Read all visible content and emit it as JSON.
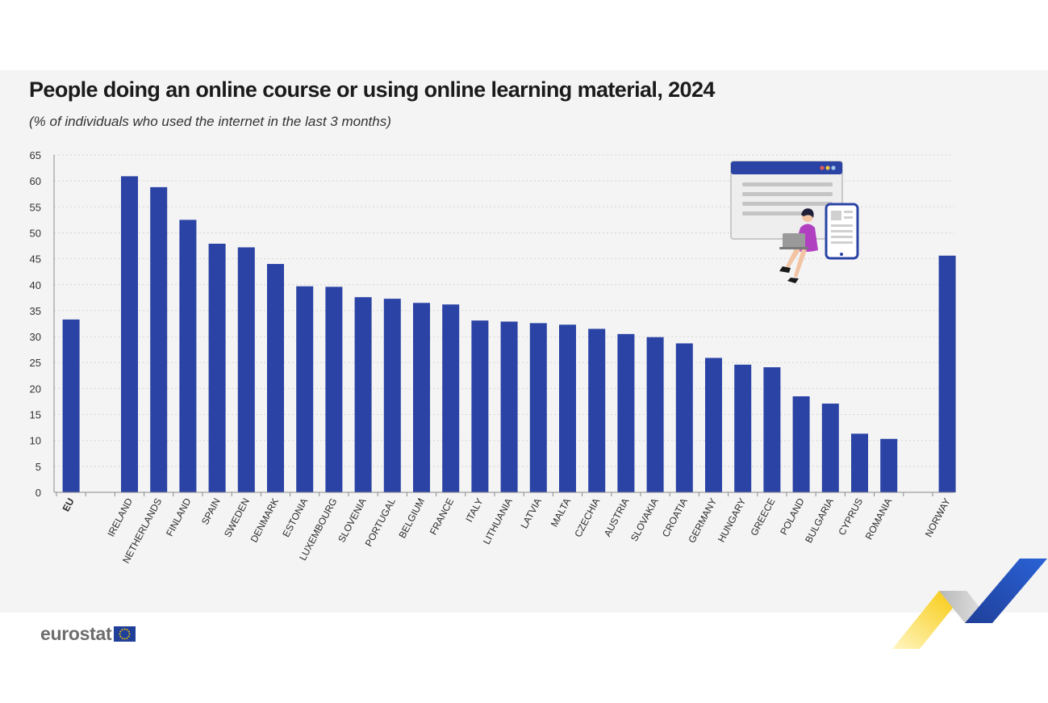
{
  "title": "People doing an online course or using online learning material, 2024",
  "subtitle": "(% of individuals who used the internet in the last 3 months)",
  "logo_text": "eurostat",
  "colors": {
    "bar": "#2a43a5",
    "panel": "#f4f4f4",
    "grid": "#d6d6d6",
    "accent_yellow": "#f7c600"
  },
  "chart_data": {
    "type": "bar",
    "title": "People doing an online course or using online learning material, 2024",
    "subtitle": "(% of individuals who used the internet in the last 3 months)",
    "xlabel": "",
    "ylabel": "",
    "ylim": [
      0,
      65
    ],
    "yticks": [
      0,
      5,
      10,
      15,
      20,
      25,
      30,
      35,
      40,
      45,
      50,
      55,
      60,
      65
    ],
    "grid": true,
    "categories": [
      "EU",
      "IRELAND",
      "NETHERLANDS",
      "FINLAND",
      "SPAIN",
      "SWEDEN",
      "DENMARK",
      "ESTONIA",
      "LUXEMBOURG",
      "SLOVENIA",
      "PORTUGAL",
      "BELGIUM",
      "FRANCE",
      "ITALY",
      "LITHUANIA",
      "LATVIA",
      "MALTA",
      "CZECHIA",
      "AUSTRIA",
      "SLOVAKIA",
      "CROATIA",
      "GERMANY",
      "HUNGARY",
      "GREECE",
      "POLAND",
      "BULGARIA",
      "CYPRUS",
      "ROMANIA",
      "NORWAY"
    ],
    "values": [
      33.3,
      60.9,
      58.8,
      52.5,
      47.9,
      47.2,
      44.0,
      39.7,
      39.6,
      37.6,
      37.3,
      36.5,
      36.2,
      33.1,
      32.9,
      32.6,
      32.3,
      31.5,
      30.5,
      29.9,
      28.7,
      25.9,
      24.6,
      24.1,
      18.5,
      17.1,
      11.3,
      10.3,
      45.6
    ]
  }
}
